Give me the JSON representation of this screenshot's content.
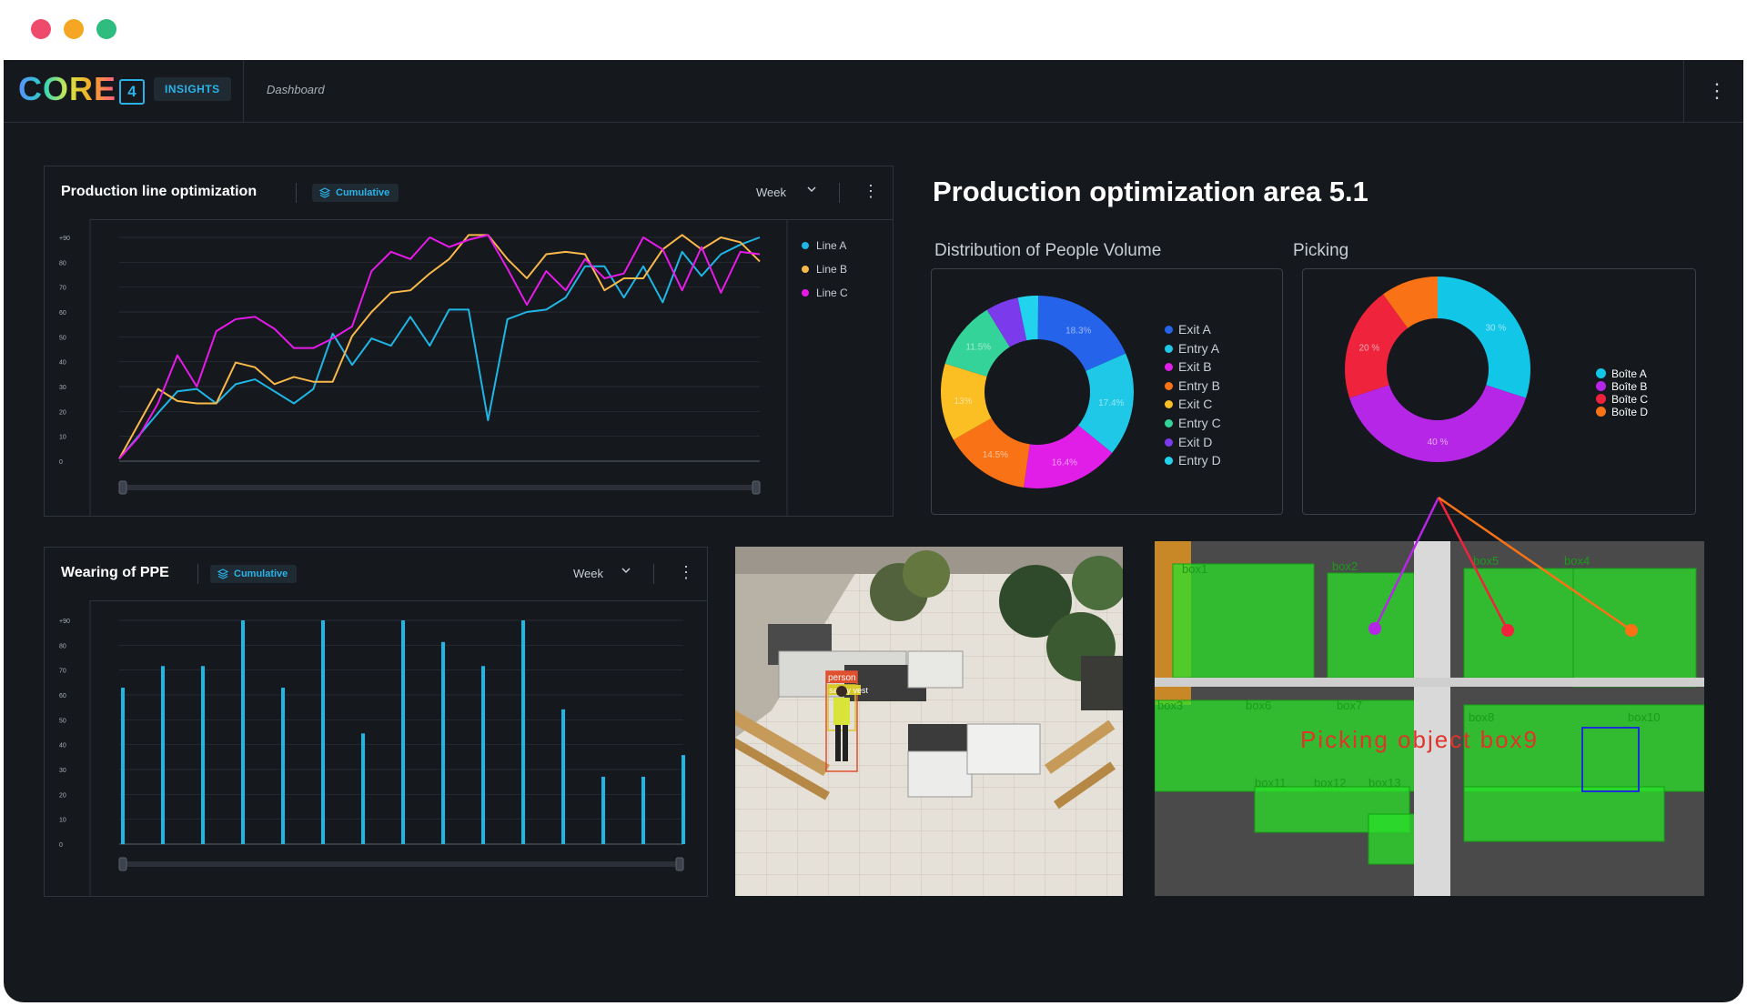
{
  "window": {
    "buttons": [
      "close",
      "minimize",
      "maximize"
    ],
    "colors": [
      "#ee4a6c",
      "#f5a623",
      "#2ebd7f"
    ]
  },
  "header": {
    "logo": "CORE",
    "logo_version": "4",
    "module": "INSIGHTS",
    "breadcrumb": "Dashboard",
    "menu_icon": "kebab-icon"
  },
  "colors": {
    "accent": "#2ab3e8",
    "line_a": "#1fb6e6",
    "line_b": "#f8b84a",
    "line_c": "#e61bea"
  },
  "cards": {
    "production_line": {
      "title": "Production line optimization",
      "badge": "Cumulative",
      "period": "Week"
    },
    "ppe": {
      "title": "Wearing of PPE",
      "badge": "Cumulative",
      "period": "Week"
    }
  },
  "area": {
    "title": "Production optimization area 5.1",
    "distribution_title": "Distribution of People Volume",
    "picking_title": "Picking"
  },
  "camera1": {
    "labels": [
      "person",
      "safety vest"
    ]
  },
  "camera2": {
    "labels": [
      "box1",
      "box2",
      "box3",
      "box4",
      "box5",
      "box6",
      "box7",
      "box8",
      "box10",
      "box11",
      "box12",
      "box13"
    ],
    "overlay": "Picking object box9"
  },
  "chart_data": [
    {
      "type": "line",
      "title": "Production line optimization",
      "yticks": [
        "+90",
        "80",
        "70",
        "60",
        "50",
        "40",
        "30",
        "20",
        "10",
        "0"
      ],
      "ylim": [
        0,
        93
      ],
      "x": [
        0,
        1,
        2,
        3,
        4,
        5,
        6,
        7,
        8,
        9,
        10,
        11,
        12,
        13,
        14,
        15,
        16,
        17,
        18,
        19,
        20,
        21,
        22,
        23,
        24,
        25,
        26,
        27,
        28,
        29,
        30,
        31,
        32,
        33
      ],
      "series": [
        {
          "name": "Line A",
          "color": "#1fb6e6",
          "x": [
            0,
            2,
            3,
            4,
            5,
            6,
            7,
            9,
            10,
            11,
            12,
            13,
            14,
            15,
            16,
            17,
            18,
            19,
            20,
            21,
            22,
            23,
            24,
            25,
            26,
            27,
            28,
            29,
            30,
            31,
            32,
            33
          ],
          "values": [
            1,
            20,
            29,
            30,
            24,
            32,
            34,
            24,
            30,
            53,
            40,
            51,
            48,
            60,
            48,
            63,
            63,
            17,
            59,
            62,
            63,
            68,
            81,
            81,
            68,
            81,
            66,
            87,
            77,
            86,
            90,
            93
          ]
        },
        {
          "name": "Line B",
          "color": "#f8b84a",
          "x": [
            0,
            2,
            3,
            4,
            5,
            6,
            7,
            8,
            9,
            10,
            11,
            12,
            13,
            14,
            15,
            16,
            17,
            18,
            19,
            20,
            21,
            22,
            23,
            24,
            25,
            26,
            27,
            28,
            29,
            30,
            31,
            32,
            33
          ],
          "values": [
            1,
            30,
            25,
            24,
            24,
            41,
            39,
            32,
            35,
            33,
            33,
            52,
            62,
            70,
            71,
            78,
            84,
            94,
            94,
            84,
            76,
            86,
            87,
            86,
            71,
            76,
            76,
            88,
            94,
            88,
            93,
            91,
            83
          ]
        },
        {
          "name": "Line C",
          "color": "#e61bea",
          "x": [
            0,
            1,
            2,
            3,
            4,
            5,
            6,
            7,
            8,
            9,
            10,
            11,
            12,
            13,
            14,
            15,
            16,
            17,
            18,
            19,
            20,
            21,
            22,
            23,
            24,
            25,
            26,
            27,
            28,
            29,
            30,
            31,
            32,
            33
          ],
          "values": [
            1,
            10,
            24,
            44,
            31,
            54,
            59,
            60,
            55,
            47,
            47,
            51,
            56,
            79,
            87,
            84,
            93,
            89,
            92,
            94,
            80,
            65,
            79,
            71,
            84,
            76,
            78,
            93,
            88,
            71,
            89,
            70,
            87,
            86
          ]
        }
      ]
    },
    {
      "type": "bar",
      "title": "Wearing of PPE",
      "yticks": [
        "+90",
        "80",
        "70",
        "60",
        "50",
        "40",
        "30",
        "20",
        "10",
        "0"
      ],
      "ylim": [
        0,
        93
      ],
      "categories": [
        "1",
        "2",
        "3",
        "4",
        "5",
        "6",
        "7",
        "8",
        "9",
        "10",
        "11",
        "12",
        "13",
        "14",
        "15"
      ],
      "series": [
        {
          "values": [
            65,
            74,
            74,
            93,
            65,
            93,
            46,
            93,
            84,
            74,
            93,
            56,
            28,
            28,
            37
          ]
        }
      ]
    },
    {
      "type": "pie",
      "title": "Distribution of People Volume",
      "labels": [
        "Exit A",
        "Entry A",
        "Exit B",
        "Entry B",
        "Exit C",
        "Entry C",
        "Exit D",
        "Entry D"
      ],
      "values": [
        18.3,
        17.4,
        16.4,
        14.5,
        13,
        11.5,
        5.5,
        3.4
      ],
      "value_labels": [
        "18.3%",
        "17.4%",
        "16.4%",
        "14.5%",
        "13%",
        "11.5%",
        "",
        ""
      ],
      "colors": [
        "#2563eb",
        "#1ec8e6",
        "#e11ee8",
        "#f97316",
        "#fbbf24",
        "#34d399",
        "#7c3aed",
        "#22d3ee"
      ]
    },
    {
      "type": "pie",
      "title": "Picking",
      "labels": [
        "Boîte A",
        "Boîte B",
        "Boîte C",
        "Boîte D"
      ],
      "values": [
        30,
        40,
        20,
        10
      ],
      "value_labels": [
        "30 %",
        "40 %",
        "20 %",
        ""
      ],
      "colors": [
        "#12c6e8",
        "#b626e6",
        "#ef233c",
        "#f97316"
      ]
    }
  ]
}
